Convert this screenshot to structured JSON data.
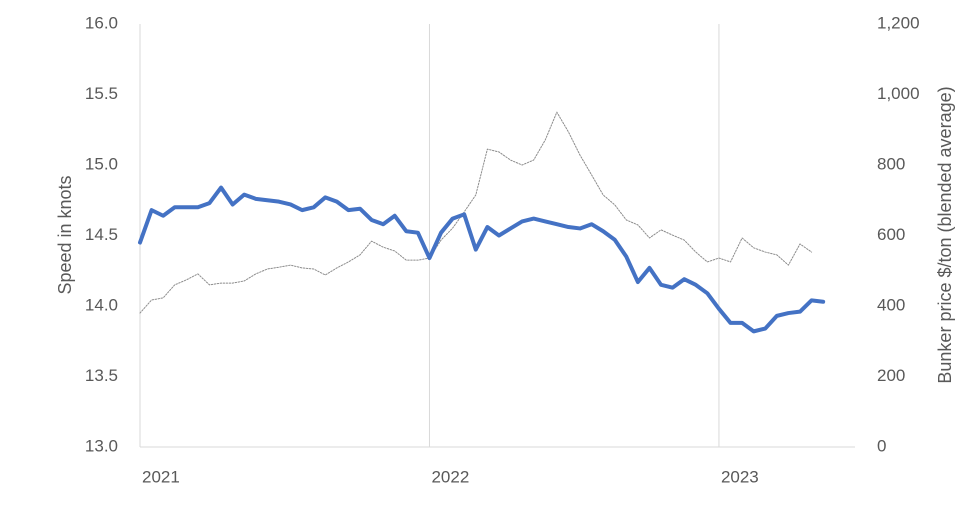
{
  "chart_data": {
    "type": "line",
    "y_title": "Speed in knots",
    "y2_title": "Bunker price $/ton (blended average)",
    "x": [
      2021,
      2021.04,
      2021.08,
      2021.12,
      2021.16,
      2021.2,
      2021.24,
      2021.28,
      2021.32,
      2021.36,
      2021.4,
      2021.44,
      2021.48,
      2021.52,
      2021.56,
      2021.6,
      2021.64,
      2021.68,
      2021.72,
      2021.76,
      2021.8,
      2021.84,
      2021.88,
      2021.92,
      2021.96,
      2022,
      2022.04,
      2022.08,
      2022.12,
      2022.16,
      2022.2,
      2022.24,
      2022.28,
      2022.32,
      2022.36,
      2022.4,
      2022.44,
      2022.48,
      2022.52,
      2022.56,
      2022.6,
      2022.64,
      2022.68,
      2022.72,
      2022.76,
      2022.8,
      2022.84,
      2022.88,
      2022.92,
      2022.96,
      2023,
      2023.04,
      2023.08,
      2023.12,
      2023.16,
      2023.2,
      2023.24,
      2023.28,
      2023.32,
      2023.36
    ],
    "xlim": [
      2021,
      2023.47
    ],
    "xticks": [
      2021,
      2022,
      2023
    ],
    "ylim": [
      13,
      16
    ],
    "yticks": [
      {
        "value": 13,
        "label": "13.0"
      },
      {
        "value": 13.5,
        "label": "13.5"
      },
      {
        "value": 14,
        "label": "14.0"
      },
      {
        "value": 14.5,
        "label": "14.5"
      },
      {
        "value": 15,
        "label": "15.0"
      },
      {
        "value": 15.5,
        "label": "15.5"
      },
      {
        "value": 16,
        "label": "16.0"
      }
    ],
    "y2lim": [
      0,
      1200
    ],
    "y2ticks": [
      0,
      200,
      400,
      600,
      800,
      {
        "value": 1000,
        "label": "1,000"
      },
      {
        "value": 1200,
        "label": "1,200"
      }
    ],
    "grid": "x",
    "series": [
      {
        "color": "#4472c4",
        "values": [
          14.45,
          14.68,
          14.64,
          14.7,
          14.7,
          14.7,
          14.73,
          14.84,
          14.72,
          14.79,
          14.76,
          14.75,
          14.74,
          14.72,
          14.68,
          14.7,
          14.77,
          14.74,
          14.68,
          14.69,
          14.61,
          14.58,
          14.64,
          14.53,
          14.52,
          14.34,
          14.52,
          14.62,
          14.65,
          14.4,
          14.56,
          14.5,
          14.55,
          14.6,
          14.62,
          14.6,
          14.58,
          14.56,
          14.55,
          14.58,
          14.53,
          14.47,
          14.35,
          14.17,
          14.27,
          14.15,
          14.13,
          14.19,
          14.15,
          14.09,
          13.98,
          13.88,
          13.88,
          13.82,
          13.84,
          13.93,
          13.95,
          13.96,
          14.04,
          14.03
        ]
      },
      {
        "color": "#8c8c8c",
        "axis": "y2",
        "values": [
          380,
          417,
          423,
          460,
          474,
          491,
          460,
          465,
          465,
          471,
          491,
          505,
          510,
          516,
          508,
          505,
          488,
          508,
          525,
          545,
          584,
          567,
          556,
          530,
          530,
          536,
          587,
          621,
          667,
          715,
          845,
          837,
          814,
          800,
          814,
          871,
          950,
          894,
          828,
          772,
          715,
          687,
          644,
          630,
          593,
          616,
          601,
          587,
          553,
          525,
          536,
          525,
          593,
          565,
          553,
          545,
          516,
          576,
          553,
          null
        ]
      }
    ]
  }
}
